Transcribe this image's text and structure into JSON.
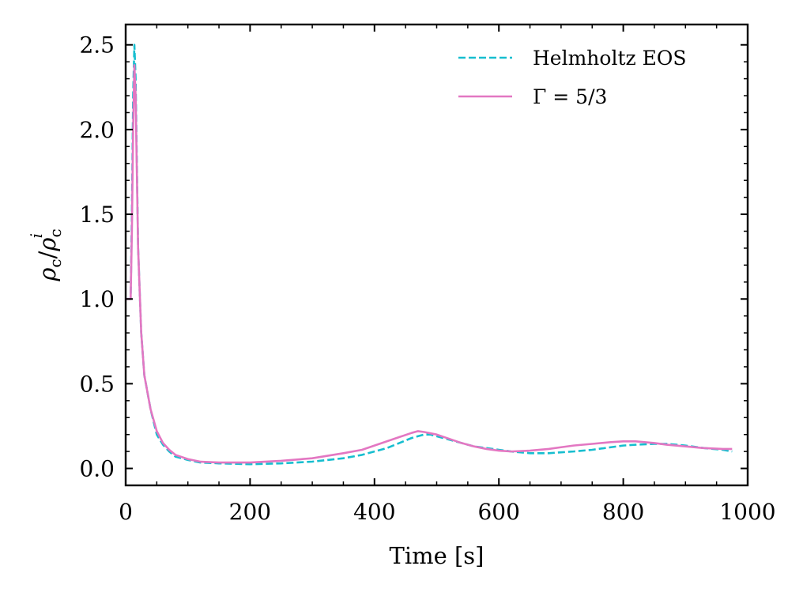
{
  "chart_data": {
    "type": "line",
    "title": "",
    "xlabel": "Time [s]",
    "ylabel_parts": {
      "base": "ρ",
      "sub1": "c",
      "slash": "/",
      "base2": "ρ",
      "sub2": "c",
      "sup2": "i"
    },
    "xlim": [
      0,
      1000
    ],
    "ylim": [
      -0.1,
      2.62
    ],
    "xticks": [
      0,
      200,
      400,
      600,
      800,
      1000
    ],
    "xtick_labels": [
      "0",
      "200",
      "400",
      "600",
      "800",
      "1000"
    ],
    "yticks": [
      0.0,
      0.5,
      1.0,
      1.5,
      2.0,
      2.5
    ],
    "ytick_labels": [
      "0.0",
      "0.5",
      "1.0",
      "1.5",
      "2.0",
      "2.5"
    ],
    "grid": false,
    "legend_position": "top-right",
    "series": [
      {
        "name": "Helmholtz EOS",
        "color": "#17becf",
        "style": "dashed",
        "x": [
          0,
          5,
          8,
          10,
          12,
          14,
          16,
          18,
          20,
          25,
          30,
          40,
          50,
          60,
          70,
          80,
          100,
          120,
          150,
          200,
          250,
          300,
          350,
          380,
          400,
          420,
          440,
          460,
          480,
          490,
          500,
          520,
          540,
          560,
          580,
          600,
          620,
          650,
          680,
          700,
          720,
          750,
          780,
          800,
          820,
          850,
          870,
          900,
          930,
          960,
          975
        ],
        "y": [
          1.0,
          1.0,
          1.0,
          1.5,
          2.2,
          2.5,
          2.3,
          1.8,
          1.3,
          0.8,
          0.55,
          0.35,
          0.2,
          0.14,
          0.1,
          0.07,
          0.05,
          0.035,
          0.03,
          0.025,
          0.03,
          0.04,
          0.06,
          0.08,
          0.1,
          0.12,
          0.15,
          0.18,
          0.2,
          0.2,
          0.19,
          0.17,
          0.15,
          0.13,
          0.12,
          0.11,
          0.1,
          0.09,
          0.09,
          0.095,
          0.1,
          0.11,
          0.125,
          0.135,
          0.14,
          0.145,
          0.145,
          0.135,
          0.12,
          0.11,
          0.1
        ]
      },
      {
        "name": "Γ = 5/3",
        "color": "#e377c2",
        "style": "solid",
        "x": [
          0,
          5,
          8,
          10,
          12,
          14,
          16,
          18,
          20,
          25,
          30,
          40,
          50,
          60,
          70,
          80,
          100,
          120,
          150,
          200,
          250,
          300,
          350,
          380,
          400,
          420,
          440,
          460,
          470,
          480,
          500,
          520,
          540,
          560,
          580,
          600,
          620,
          650,
          680,
          700,
          720,
          750,
          780,
          800,
          820,
          850,
          870,
          900,
          930,
          960,
          975
        ],
        "y": [
          1.0,
          1.0,
          1.0,
          1.4,
          2.0,
          2.38,
          2.2,
          1.75,
          1.3,
          0.8,
          0.55,
          0.35,
          0.22,
          0.15,
          0.11,
          0.08,
          0.055,
          0.04,
          0.035,
          0.035,
          0.045,
          0.06,
          0.09,
          0.11,
          0.135,
          0.16,
          0.185,
          0.21,
          0.22,
          0.215,
          0.2,
          0.175,
          0.15,
          0.13,
          0.115,
          0.105,
          0.1,
          0.105,
          0.115,
          0.125,
          0.135,
          0.145,
          0.155,
          0.16,
          0.16,
          0.15,
          0.14,
          0.13,
          0.12,
          0.115,
          0.115
        ]
      }
    ]
  }
}
